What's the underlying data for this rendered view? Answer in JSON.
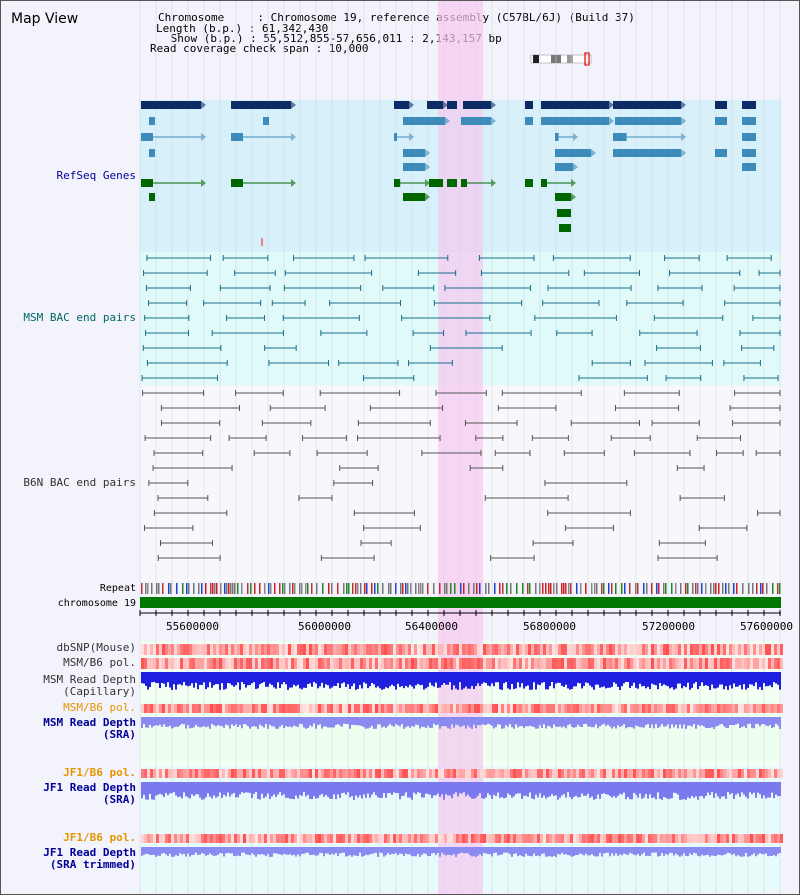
{
  "header": {
    "view_title": "Map View",
    "info_lines": [
      "Chromosome     : Chromosome 19, reference assembly (C57BL/6J) (Build 37)",
      "Length (b.p.) : 61,342,430",
      " Show (b.p.) : 55,512,855-57,656,011 : 2,143,157 bp",
      "Read coverage check span : 10,000"
    ]
  },
  "tracks": {
    "refseq": {
      "label": "RefSeq Genes",
      "color": "#000099"
    },
    "msm_bac": {
      "label": "MSM BAC end pairs",
      "color": "#006666"
    },
    "b6n_bac": {
      "label": "B6N BAC end pairs",
      "color": "#333333"
    },
    "repeat": {
      "label": "Repeat"
    },
    "chromosome": {
      "label": "chromosome 19"
    },
    "dbsnp": {
      "label": "dbSNP(Mouse)",
      "color": "#333333"
    },
    "msm_b6_pol_1": {
      "label": "MSM/B6 pol.",
      "color": "#333333"
    },
    "msm_depth_cap": {
      "label": "MSM Read Depth\n(Capillary)",
      "color": "#333333"
    },
    "msm_b6_pol_2": {
      "label": "MSM/B6 pol.",
      "color": "#e69500"
    },
    "msm_depth_sra": {
      "label": "MSM Read Depth\n(SRA)",
      "color": "#000099"
    },
    "jf1_b6_pol_1": {
      "label": "JF1/B6 pol.",
      "color": "#e69500"
    },
    "jf1_depth_sra": {
      "label": "JF1 Read Depth\n(SRA)",
      "color": "#000099"
    },
    "jf1_b6_pol_2": {
      "label": "JF1/B6 pol.",
      "color": "#e69500"
    },
    "jf1_depth_trim": {
      "label": "JF1 Read Depth\n(SRA trimmed)",
      "color": "#000099"
    }
  },
  "axis": {
    "ticks": [
      "55600000",
      "56000000",
      "56400000",
      "56800000",
      "57200000",
      "57600000"
    ]
  },
  "colors": {
    "refseq_bg": "#d8f0fa",
    "msm_bg": "#e0fafa",
    "highlight": "#f5c8f0",
    "gene_dark": "#0d2c66",
    "gene_mid": "#3d8bb8",
    "gene_green": "#006600",
    "chromosome_bar": "#007700"
  }
}
